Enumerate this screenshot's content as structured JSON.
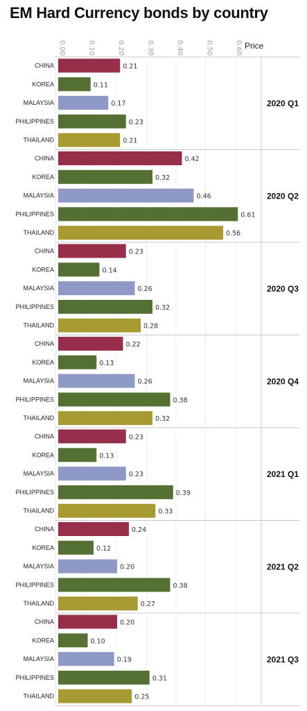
{
  "chart_data": {
    "type": "bar",
    "orientation": "horizontal",
    "title": "EM Hard Currency bonds by country",
    "xlabel": "Price",
    "ticks": [
      "0.00",
      "0.10",
      "0.20",
      "0.30",
      "0.40",
      "0.50",
      "0.60"
    ],
    "xlim": [
      0,
      0.7
    ],
    "categories": [
      "CHINA",
      "KOREA",
      "MALAYSIA",
      "PHILIPPINES",
      "THAILAND"
    ],
    "colors": {
      "CHINA": "#96304a",
      "KOREA": "#557033",
      "MALAYSIA": "#8e99c8",
      "PHILIPPINES": "#557033",
      "THAILAND": "#a89a32"
    },
    "groups": [
      {
        "name": "2020 Q1",
        "values": [
          0.21,
          0.11,
          0.17,
          0.23,
          0.21
        ],
        "labels": [
          "0.21",
          "0.11",
          "0.17",
          "0.23",
          "0.21"
        ]
      },
      {
        "name": "2020 Q2",
        "values": [
          0.42,
          0.32,
          0.46,
          0.61,
          0.56
        ],
        "labels": [
          "0.42",
          "0.32",
          "0.46",
          "0.61",
          "0.56"
        ]
      },
      {
        "name": "2020 Q3",
        "values": [
          0.23,
          0.14,
          0.26,
          0.32,
          0.28
        ],
        "labels": [
          "0.23",
          "0.14",
          "0.26",
          "0.32",
          "0.28"
        ]
      },
      {
        "name": "2020 Q4",
        "values": [
          0.22,
          0.13,
          0.26,
          0.38,
          0.32
        ],
        "labels": [
          "0.22",
          "0.13",
          "0.26",
          "0.38",
          "0.32"
        ]
      },
      {
        "name": "2021 Q1",
        "values": [
          0.23,
          0.13,
          0.23,
          0.39,
          0.33
        ],
        "labels": [
          "0.23",
          "0.13",
          "0.23",
          "0.39",
          "0.33"
        ]
      },
      {
        "name": "2021 Q2",
        "values": [
          0.24,
          0.12,
          0.2,
          0.38,
          0.27
        ],
        "labels": [
          "0.24",
          "0.12",
          "0.20",
          "0.38",
          "0.27"
        ]
      },
      {
        "name": "2021 Q3",
        "values": [
          0.2,
          0.1,
          0.19,
          0.31,
          0.25
        ],
        "labels": [
          "0.20",
          "0.10",
          "0.19",
          "0.31",
          "0.25"
        ]
      }
    ]
  }
}
